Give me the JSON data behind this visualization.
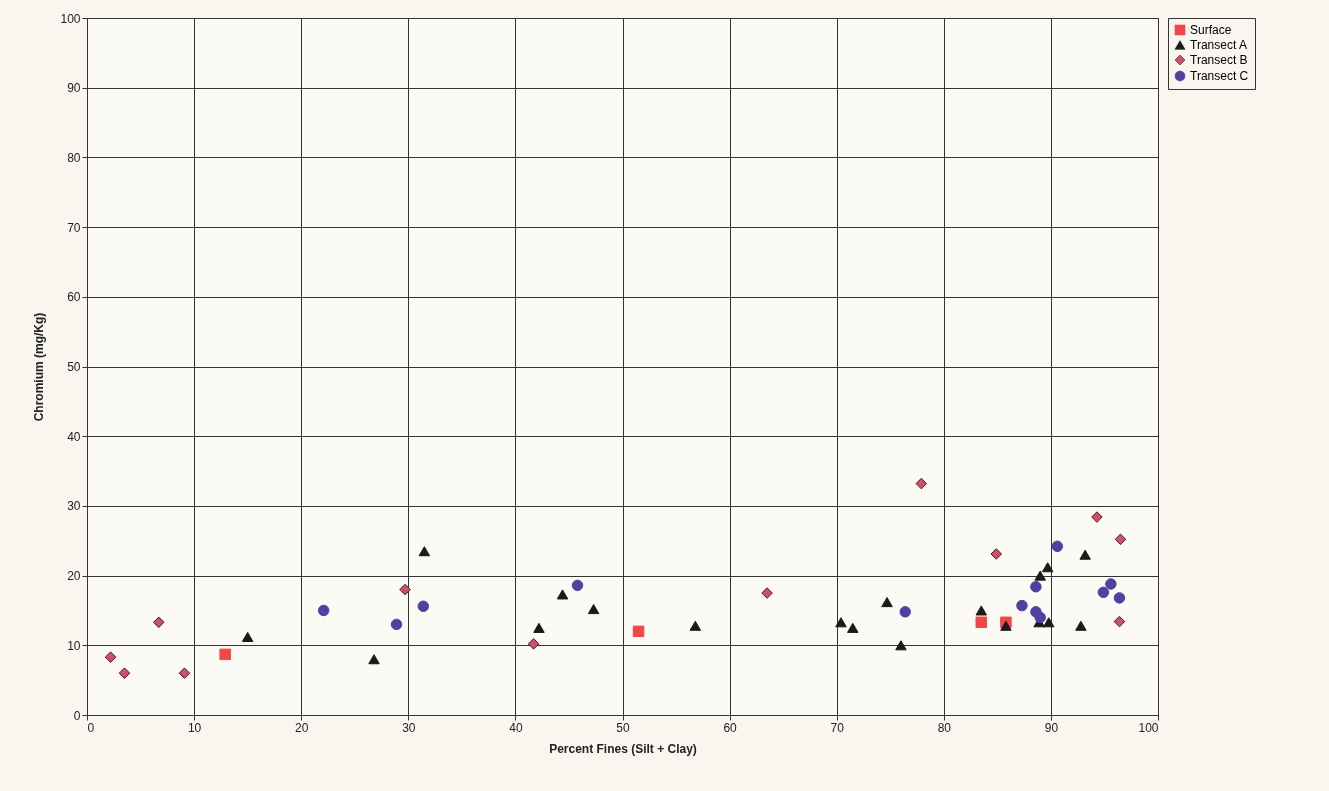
{
  "chart_data": {
    "type": "scatter",
    "xlabel": "Percent Fines (Silt + Clay)",
    "ylabel": "Chromium (mg/Kg)",
    "xlim": [
      0,
      100
    ],
    "ylim": [
      0,
      100
    ],
    "xticks": [
      0,
      10,
      20,
      30,
      40,
      50,
      60,
      70,
      80,
      90,
      100
    ],
    "yticks": [
      0,
      10,
      20,
      30,
      40,
      50,
      60,
      70,
      80,
      90,
      100
    ],
    "grid": true,
    "legend": "right",
    "series": [
      {
        "name": "Surface",
        "color": "#f04848",
        "marker": "square",
        "x": [
          12.9,
          51.5,
          83.5,
          85.8
        ],
        "values": [
          8.7,
          12,
          13.3,
          13.3
        ]
      },
      {
        "name": "Transect A",
        "color": "#1a1a1a",
        "marker": "triangle",
        "x": [
          15,
          26.8,
          31.5,
          42.2,
          44.4,
          47.3,
          56.8,
          70.4,
          71.5,
          74.7,
          76,
          83.5,
          85.8,
          89,
          89.7,
          88.9,
          89.8,
          93.2,
          92.8
        ],
        "values": [
          11.2,
          8,
          23.5,
          12.5,
          17.3,
          15.2,
          12.8,
          13.3,
          12.5,
          16.2,
          10,
          15,
          12.8,
          20,
          21.2,
          13.3,
          13.3,
          23,
          12.8
        ]
      },
      {
        "name": "Transect B",
        "color": "#d0506a",
        "marker": "diamond",
        "x": [
          2.2,
          3.5,
          6.7,
          9.1,
          29.7,
          41.7,
          63.5,
          77.9,
          84.9,
          94.3,
          96.5,
          96.4
        ],
        "values": [
          8.3,
          6,
          13.3,
          6,
          18,
          10.2,
          17.5,
          33.2,
          23.1,
          28.4,
          25.2,
          13.4
        ]
      },
      {
        "name": "Transect C",
        "color": "#5040a0",
        "marker": "circle",
        "x": [
          22.1,
          28.9,
          31.4,
          45.8,
          76.4,
          87.3,
          88.6,
          88.6,
          90.6,
          94.9,
          95.6,
          96.4,
          89
        ],
        "values": [
          15,
          13,
          15.6,
          18.6,
          14.8,
          15.7,
          18.4,
          14.8,
          24.2,
          17.6,
          18.8,
          16.8,
          14
        ]
      }
    ]
  }
}
